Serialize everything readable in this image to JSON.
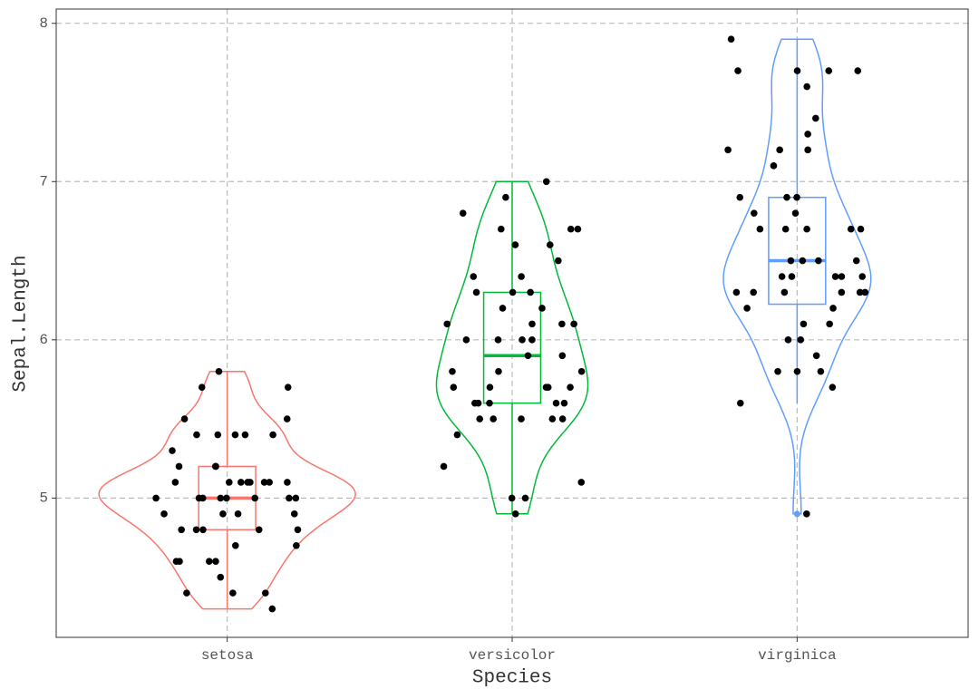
{
  "chart_data": {
    "type": "violin",
    "x_label": "Species",
    "y_label": "Sepal.Length",
    "categories": [
      "setosa",
      "versicolor",
      "virginica"
    ],
    "ylim": [
      4.12,
      8.09
    ],
    "yticks": [
      5,
      6,
      7,
      8
    ],
    "grid": true,
    "point_color": "#000000",
    "series": [
      {
        "name": "setosa",
        "color": "#F8766D",
        "values": [
          5.1,
          4.9,
          4.7,
          4.6,
          5.0,
          5.4,
          4.6,
          5.0,
          4.4,
          4.9,
          5.4,
          4.8,
          4.8,
          4.3,
          5.8,
          5.7,
          5.4,
          5.1,
          5.7,
          5.1,
          5.4,
          5.1,
          4.6,
          5.1,
          4.8,
          5.0,
          5.0,
          5.2,
          5.2,
          4.7,
          4.8,
          5.4,
          5.2,
          5.5,
          4.9,
          5.0,
          5.5,
          4.9,
          4.4,
          5.1,
          5.0,
          4.5,
          4.4,
          5.0,
          5.1,
          4.8,
          5.1,
          4.6,
          5.3,
          5.0
        ],
        "box": {
          "whisker_low": 4.3,
          "q1": 4.8,
          "median": 5.0,
          "q3": 5.2,
          "whisker_high": 5.8,
          "outliers": []
        }
      },
      {
        "name": "versicolor",
        "color": "#00BA38",
        "values": [
          7.0,
          6.4,
          6.9,
          5.5,
          6.5,
          5.7,
          6.3,
          4.9,
          6.6,
          5.2,
          5.0,
          5.9,
          6.0,
          6.1,
          5.6,
          6.7,
          5.6,
          5.8,
          6.2,
          5.6,
          5.9,
          6.1,
          6.3,
          6.1,
          6.4,
          6.6,
          6.8,
          6.7,
          6.0,
          5.7,
          5.5,
          5.5,
          5.8,
          6.0,
          5.4,
          6.0,
          6.7,
          6.3,
          5.6,
          5.5,
          5.5,
          6.1,
          5.8,
          5.0,
          5.6,
          5.7,
          5.7,
          6.2,
          5.1,
          5.7
        ],
        "box": {
          "whisker_low": 4.9,
          "q1": 5.6,
          "median": 5.9,
          "q3": 6.3,
          "whisker_high": 7.0,
          "outliers": []
        }
      },
      {
        "name": "virginica",
        "color": "#619CFF",
        "values": [
          6.3,
          5.8,
          7.1,
          6.3,
          6.5,
          7.6,
          4.9,
          7.3,
          6.7,
          7.2,
          6.5,
          6.4,
          6.8,
          5.7,
          5.8,
          6.4,
          6.5,
          7.7,
          7.7,
          6.0,
          6.9,
          5.6,
          7.7,
          6.3,
          6.7,
          7.2,
          6.2,
          6.1,
          6.4,
          7.2,
          7.4,
          7.9,
          6.4,
          6.3,
          6.1,
          7.7,
          6.3,
          6.4,
          6.0,
          6.9,
          6.7,
          6.9,
          5.8,
          6.8,
          6.7,
          6.7,
          6.3,
          6.5,
          6.2,
          5.9
        ],
        "box": {
          "whisker_low": 5.6,
          "q1": 6.225,
          "median": 6.5,
          "q3": 6.9,
          "whisker_high": 7.9,
          "outliers": [
            4.9
          ]
        }
      }
    ]
  }
}
